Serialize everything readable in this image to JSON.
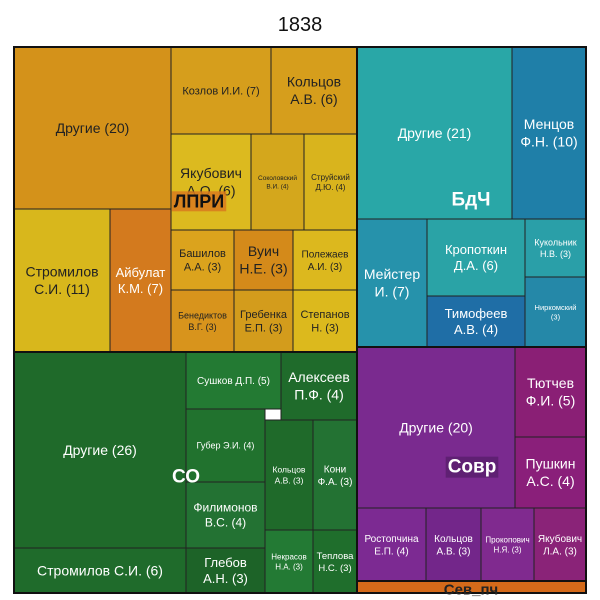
{
  "chart_data": {
    "type": "treemap",
    "title": "1838",
    "groups": [
      {
        "name": "ЛПРИ",
        "color": "#d9a21c",
        "leaves": [
          {
            "label": "Другие (20)",
            "value": 20,
            "color": "#d4921a"
          },
          {
            "label": "Козлов И.И. (7)",
            "value": 7,
            "color": "#d69e1c"
          },
          {
            "label": "Кольцов\nА.В. (6)",
            "value": 6,
            "color": "#d69e1c"
          },
          {
            "label": "Якубович\nА.О. (6)",
            "value": 6,
            "color": "#dcba1f"
          },
          {
            "label": "Соколовский\nВ.И. (4)",
            "value": 4,
            "color": "#d4a71c"
          },
          {
            "label": "Струйский\nД.Ю. (4)",
            "value": 4,
            "color": "#d9b41d"
          },
          {
            "label": "Стромилов\nС.И. (11)",
            "value": 11,
            "color": "#d8b71c"
          },
          {
            "label": "Айбулат\nК.М. (7)",
            "value": 7,
            "color": "#d37a1e"
          },
          {
            "label": "Башилов\nА.А. (3)",
            "value": 3,
            "color": "#dba31d"
          },
          {
            "label": "Вуич\nН.Е. (3)",
            "value": 3,
            "color": "#d48a1a"
          },
          {
            "label": "Полежаев\nА.И. (3)",
            "value": 3,
            "color": "#dcb81e"
          },
          {
            "label": "Бенедиктов\nВ.Г. (3)",
            "value": 3,
            "color": "#d8941c"
          },
          {
            "label": "Гребенка\nЕ.П. (3)",
            "value": 3,
            "color": "#d39c1c"
          },
          {
            "label": "Степанов\nН. (3)",
            "value": 3,
            "color": "#dcb91d"
          }
        ]
      },
      {
        "name": "БдЧ",
        "color": "#2aa3a8",
        "leaves": [
          {
            "label": "Другие (21)",
            "value": 21,
            "color": "#29a7a7"
          },
          {
            "label": "Менцов\nФ.Н. (10)",
            "value": 10,
            "color": "#1f7fa8"
          },
          {
            "label": "Мейстер\nИ. (7)",
            "value": 7,
            "color": "#2692ab"
          },
          {
            "label": "Кропоткин\nД.А. (6)",
            "value": 6,
            "color": "#2aa3a6"
          },
          {
            "label": "Кукольник\nН.В. (3)",
            "value": 3,
            "color": "#2a9fa8"
          },
          {
            "label": "Тимофеев\nА.В. (4)",
            "value": 4,
            "color": "#1f6ea6"
          },
          {
            "label": "Ниркомский\n(3)",
            "value": 3,
            "color": "#2588a8"
          }
        ]
      },
      {
        "name": "СО",
        "color": "#1f6a2a",
        "leaves": [
          {
            "label": "Другие (26)",
            "value": 26,
            "color": "#1f6a2a"
          },
          {
            "label": "Сушков Д.П. (5)",
            "value": 5,
            "color": "#237a33"
          },
          {
            "label": "Алексеев\nП.Ф. (4)",
            "value": 4,
            "color": "#1f6b2b"
          },
          {
            "label": "Губер Э.И. (4)",
            "value": 4,
            "color": "#21722e"
          },
          {
            "label": "Кольцов\nА.В. (3)",
            "value": 3,
            "color": "#1f6a2a"
          },
          {
            "label": "Кони\nФ.А. (3)",
            "value": 3,
            "color": "#237233"
          },
          {
            "label": "Филимонов\nВ.С. (4)",
            "value": 4,
            "color": "#237233"
          },
          {
            "label": "Некрасов\nН.А. (3)",
            "value": 3,
            "color": "#237a34"
          },
          {
            "label": "Теплова\nН.С. (3)",
            "value": 3,
            "color": "#1f6e2c"
          },
          {
            "label": "Стромилов С.И. (6)",
            "value": 6,
            "color": "#1f6b2b"
          },
          {
            "label": "Глебов\nА.Н. (3)",
            "value": 3,
            "color": "#1d6328"
          }
        ]
      },
      {
        "name": "Совр",
        "color": "#7a2a8f",
        "leaves": [
          {
            "label": "Другие (20)",
            "value": 20,
            "color": "#7a2a8f"
          },
          {
            "label": "Тютчев\nФ.И. (5)",
            "value": 5,
            "color": "#8a1f75"
          },
          {
            "label": "Пушкин\nА.С. (4)",
            "value": 4,
            "color": "#8a1f7a"
          },
          {
            "label": "Ростопчина\nЕ.П. (4)",
            "value": 4,
            "color": "#7c2a92"
          },
          {
            "label": "Кольцов\nА.В. (3)",
            "value": 3,
            "color": "#73268a"
          },
          {
            "label": "Прокопович\nН.Я. (3)",
            "value": 3,
            "color": "#802a8f"
          },
          {
            "label": "Якубович\nЛ.А. (3)",
            "value": 3,
            "color": "#8a2378"
          }
        ]
      },
      {
        "name": "Сев_пч",
        "color": "#d46a1a",
        "leaves": []
      }
    ]
  }
}
